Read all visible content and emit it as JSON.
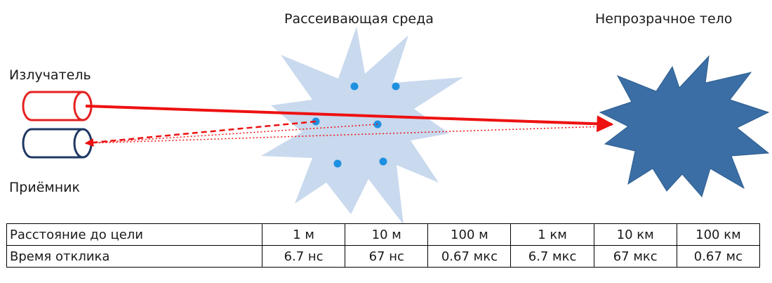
{
  "labels": {
    "scattering_medium": "Рассеивающая среда",
    "opaque_body": "Непрозрачное тело",
    "emitter": "Излучатель",
    "receiver": "Приёмник"
  },
  "table": {
    "rows": [
      {
        "header": "Расстояние до цели",
        "cells": [
          "1 м",
          "10 м",
          "100 м",
          "1 км",
          "10 км",
          "100 км"
        ]
      },
      {
        "header": "Время отклика",
        "cells": [
          "6.7 нс",
          "67 нс",
          "0.67 мкс",
          "6.7 мкс",
          "67 мкс",
          "0.67 мс"
        ]
      }
    ]
  },
  "colors": {
    "emitter": "#e52020",
    "receiver": "#1f3864",
    "medium": "#c9d9ee",
    "particles": "#1e90e0",
    "opaque_body": "#3a6ea5",
    "beam": "#ee1111"
  }
}
